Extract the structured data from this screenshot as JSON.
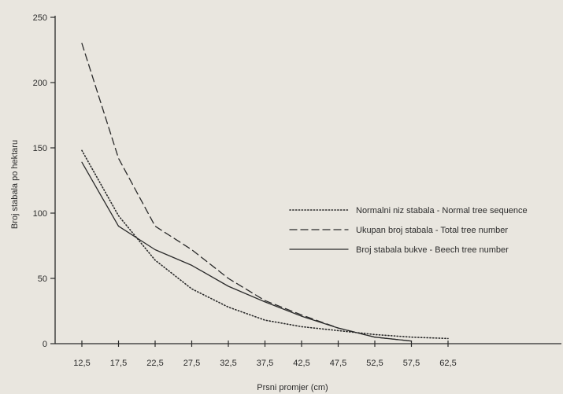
{
  "chart_data": {
    "type": "line",
    "title": "",
    "xlabel": "Prsni promjer (cm)",
    "ylabel": "Broj stabala po hektaru",
    "x": [
      "12,5",
      "17,5",
      "22,5",
      "27,5",
      "32,5",
      "37,5",
      "42,5",
      "47,5",
      "52,5",
      "57,5",
      "62,5"
    ],
    "y_ticks": [
      0,
      50,
      100,
      150,
      200,
      250
    ],
    "ylim": [
      0,
      250
    ],
    "grid": false,
    "legend_position": "center-right",
    "series": [
      {
        "name": "Normalni niz stabala - Normal tree sequence",
        "style": "dotted",
        "values": [
          148,
          98,
          64,
          42,
          28,
          18,
          13,
          10,
          7,
          5,
          4
        ]
      },
      {
        "name": "Ukupan broj stabala - Total tree number",
        "style": "dashed",
        "values": [
          230,
          142,
          90,
          72,
          50,
          33,
          22,
          12,
          5,
          2,
          null
        ]
      },
      {
        "name": "Broj stabala bukve - Beech tree number",
        "style": "solid",
        "values": [
          139,
          90,
          72,
          60,
          44,
          32,
          21,
          12,
          5,
          2,
          null
        ]
      }
    ],
    "colors": {
      "line": "#2a2a2a",
      "axis": "#2a2a2a",
      "background": "#e9e6df"
    }
  }
}
